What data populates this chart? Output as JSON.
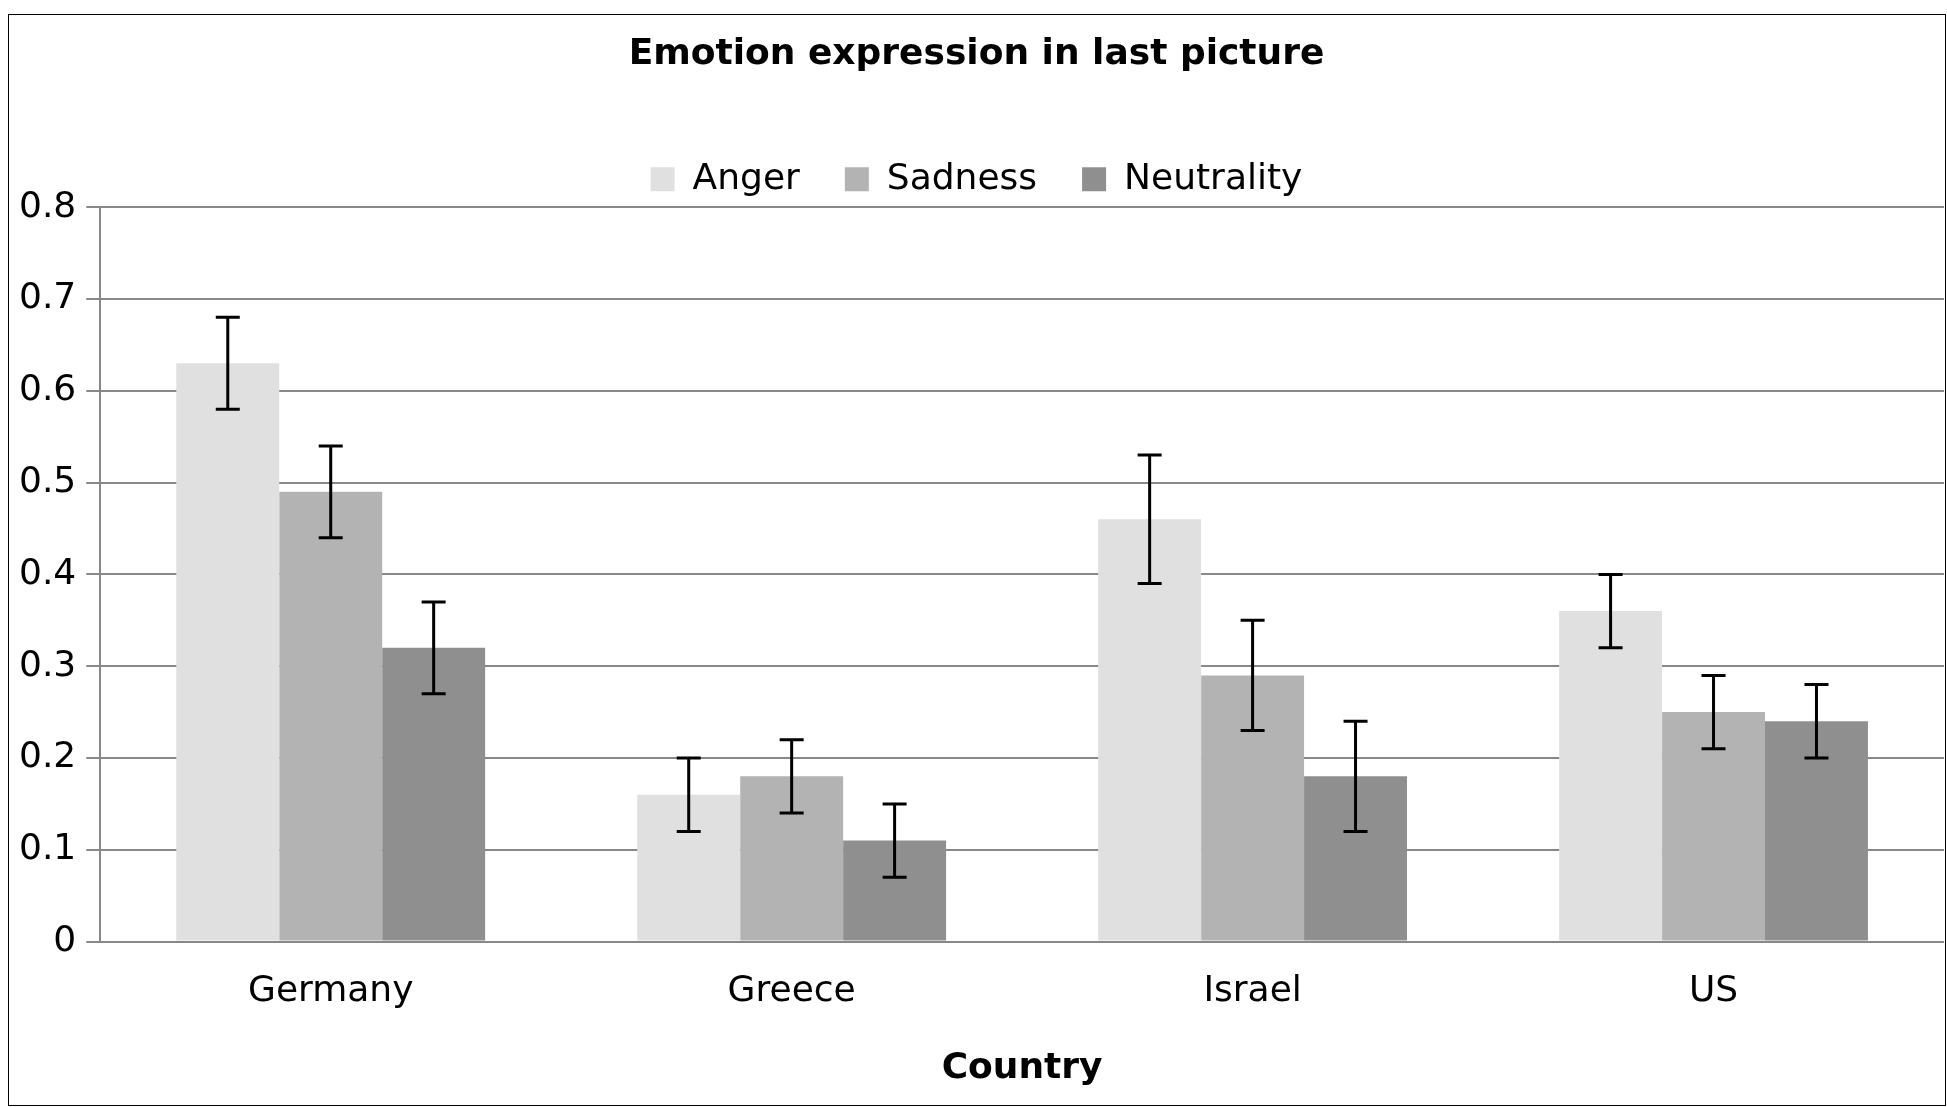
{
  "chart_data": {
    "type": "bar",
    "title": "Emotion expression in last picture",
    "xlabel": "Country",
    "categories": [
      "Germany",
      "Greece",
      "Israel",
      "US"
    ],
    "series": [
      {
        "name": "Anger",
        "color": "#e0e0e0",
        "values": [
          0.63,
          0.16,
          0.46,
          0.36
        ],
        "errors": [
          0.05,
          0.04,
          0.07,
          0.04
        ]
      },
      {
        "name": "Sadness",
        "color": "#b3b3b3",
        "values": [
          0.49,
          0.18,
          0.29,
          0.25
        ],
        "errors": [
          0.05,
          0.04,
          0.06,
          0.04
        ]
      },
      {
        "name": "Neutrality",
        "color": "#8f8f8f",
        "values": [
          0.32,
          0.11,
          0.18,
          0.24
        ],
        "errors": [
          0.05,
          0.04,
          0.06,
          0.04
        ]
      }
    ],
    "ylim": [
      0,
      0.8
    ],
    "yticks": [
      0,
      0.1,
      0.2,
      0.3,
      0.4,
      0.5,
      0.6,
      0.7,
      0.8
    ],
    "grid": "y",
    "legend": "top"
  }
}
